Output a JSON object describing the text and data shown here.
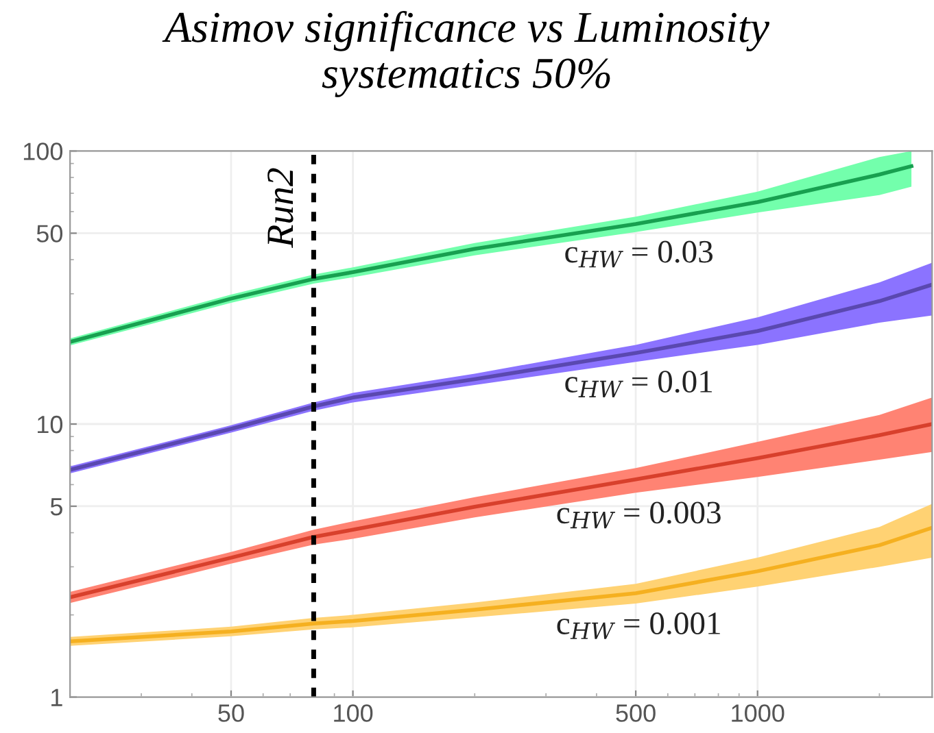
{
  "chart_data": {
    "type": "line",
    "title": "Asimov significance vs Luminosity\nsystematics 50%",
    "x": [
      20,
      50,
      80,
      100,
      200,
      500,
      1000,
      2000,
      2700
    ],
    "series": [
      {
        "name": "c$_{HW}$ = 0.03",
        "color": "#18a050",
        "x": [
          20,
          50,
          80,
          100,
          200,
          500,
          1000,
          2000,
          2400
        ],
        "values": [
          20,
          28.8,
          34,
          36,
          43.8,
          54,
          65,
          82,
          88
        ],
        "upper": [
          20.6,
          29.8,
          35.3,
          37.5,
          46,
          57.5,
          71,
          95,
          100
        ],
        "lower": [
          19.4,
          27.8,
          32.7,
          34.5,
          41.5,
          50.5,
          59.5,
          69,
          74
        ]
      },
      {
        "name": "c$_{HW}$ = 0.01",
        "color": "#5a48b0",
        "values": [
          6.8,
          9.6,
          11.6,
          12.5,
          14.6,
          18.2,
          21.9,
          28.2,
          32.4
        ],
        "upper": [
          7.0,
          9.9,
          12.0,
          13.0,
          15.3,
          19.5,
          24.6,
          33,
          39
        ],
        "lower": [
          6.6,
          9.3,
          11.2,
          12.0,
          13.9,
          16.9,
          19.5,
          23.5,
          25
        ]
      },
      {
        "name": "c$_{HW}$ = 0.003",
        "color": "#d8402c",
        "values": [
          2.32,
          3.24,
          3.86,
          4.1,
          4.98,
          6.27,
          7.5,
          9.1,
          10
        ],
        "upper": [
          2.43,
          3.4,
          4.1,
          4.4,
          5.4,
          6.9,
          8.6,
          10.8,
          12.5
        ],
        "lower": [
          2.21,
          3.08,
          3.62,
          3.8,
          4.55,
          5.6,
          6.4,
          7.4,
          7.9
        ]
      },
      {
        "name": "c$_{HW}$ = 0.001",
        "color": "#f5b020",
        "values": [
          1.6,
          1.74,
          1.86,
          1.9,
          2.09,
          2.4,
          2.89,
          3.6,
          4.17
        ],
        "upper": [
          1.66,
          1.81,
          1.95,
          2.0,
          2.22,
          2.6,
          3.24,
          4.2,
          5.1
        ],
        "lower": [
          1.54,
          1.67,
          1.77,
          1.8,
          1.96,
          2.2,
          2.54,
          3.0,
          3.24
        ]
      }
    ],
    "log": "xy",
    "xlim": [
      20,
      2700
    ],
    "ylim": [
      1,
      100
    ],
    "xticks": [
      50,
      100,
      500,
      1000
    ],
    "yticks": [
      1,
      5,
      10,
      50,
      100
    ],
    "grid": true,
    "line_style": "solid",
    "ref_lines": [
      {
        "axis": "x",
        "value": 80,
        "label": "Run2",
        "color": "#000000",
        "line_style": "dashed"
      }
    ]
  }
}
